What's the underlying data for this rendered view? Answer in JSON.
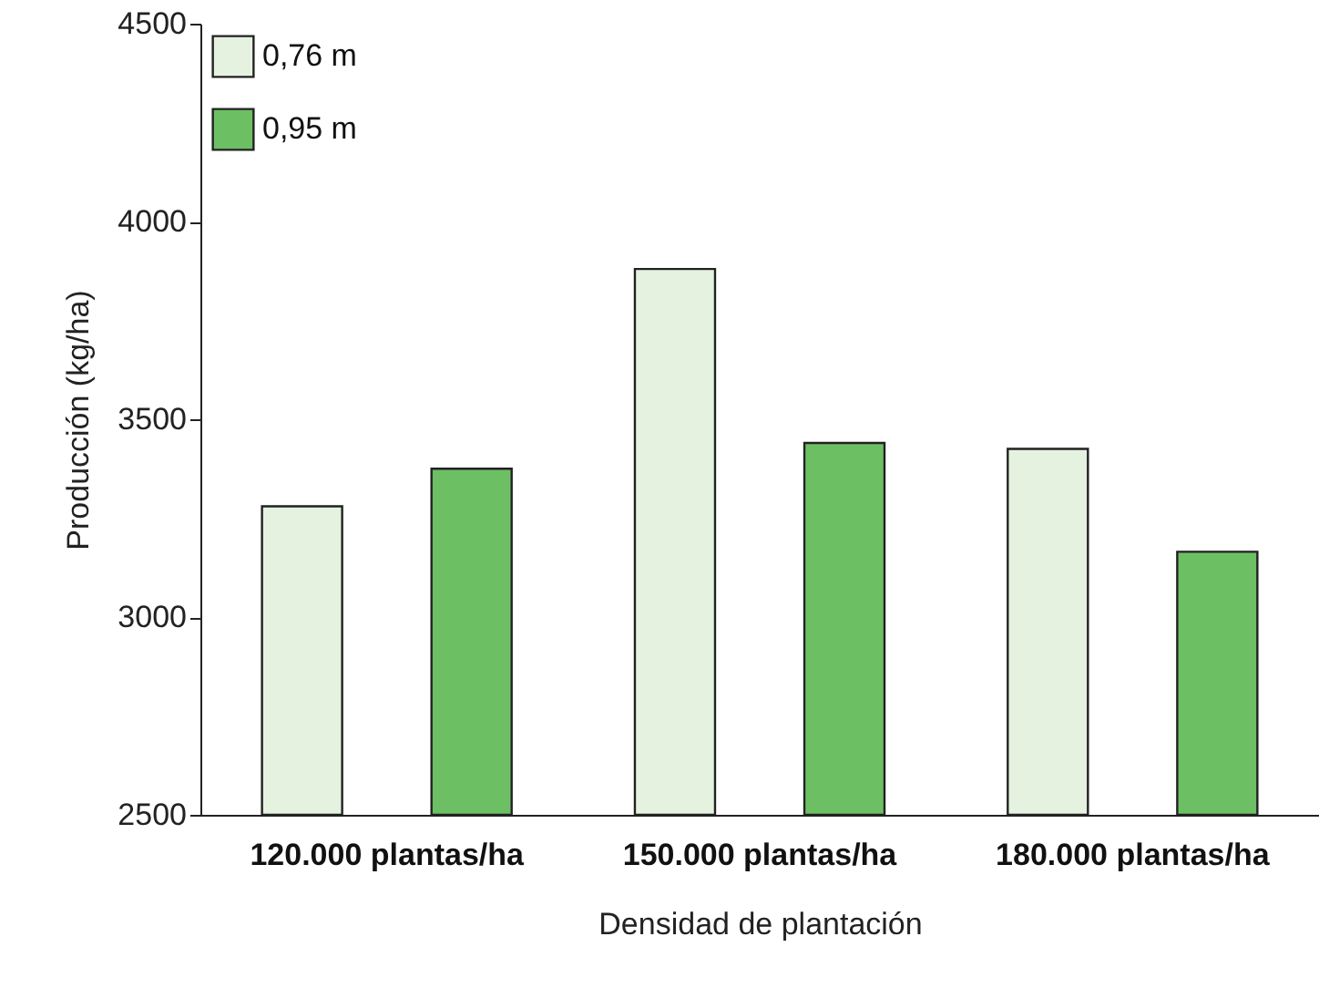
{
  "chart_data": {
    "type": "bar",
    "xlabel": "Densidad de plantación",
    "ylabel": "Producción (kg/ha)",
    "categories": [
      "120.000 plantas/ha",
      "150.000 plantas/ha",
      "180.000 plantas/ha"
    ],
    "series": [
      {
        "name": "0,76 m",
        "color": "#e6f2e0",
        "values": [
          3280,
          3880,
          3425
        ]
      },
      {
        "name": "0,95 m",
        "color": "#6dbf63",
        "values": [
          3375,
          3440,
          3165
        ]
      }
    ],
    "ylim": [
      2500,
      4500
    ],
    "yticks": [
      2500,
      3000,
      3500,
      4000,
      4500
    ],
    "grid": false,
    "legend": "top left"
  }
}
